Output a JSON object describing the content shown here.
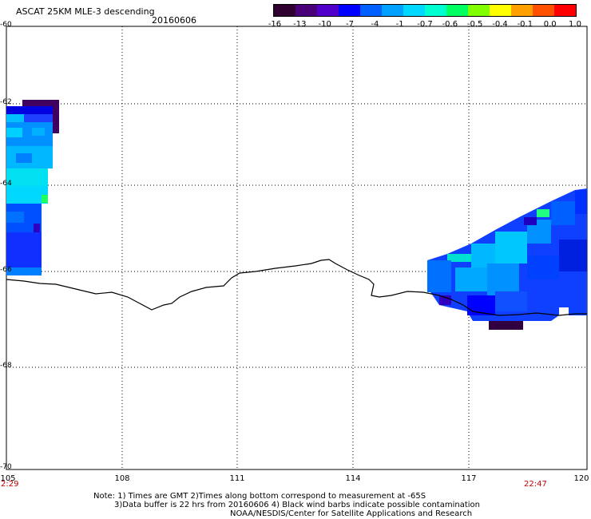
{
  "header": {
    "title": "ASCAT 25KM MLE-3 descending",
    "date": "20160606"
  },
  "colorbar": {
    "labels": [
      "-16",
      "-13",
      "-10",
      "-7",
      "-4",
      "-1",
      "-0.7",
      "-0.6",
      "-0.5",
      "-0.4",
      "-0.1",
      "0.0",
      "1.0"
    ],
    "colors": [
      "#300030",
      "#4a0078",
      "#5000c8",
      "#0000ff",
      "#0060ff",
      "#00a0ff",
      "#00d8ff",
      "#00ffd0",
      "#00ff60",
      "#80ff00",
      "#ffff00",
      "#ffa000",
      "#ff5000",
      "#ff0000"
    ]
  },
  "map": {
    "lat_labels": [
      "-60",
      "-62",
      "-64",
      "-66",
      "-68",
      "-70"
    ],
    "lon_labels": [
      "105",
      "108",
      "111",
      "114",
      "117",
      "120"
    ],
    "time_start": "2:29",
    "time_end": "22:47"
  },
  "notes": {
    "line1": "Note: 1) Times are GMT 2)Times along bottom correspond to measurement at -65S",
    "line2": "3)Data buffer is 22 hrs from 20160606 4) Black wind barbs indicate possible contamination",
    "line3": "NOAA/NESDIS/Center for Satellite Applications and Research"
  }
}
